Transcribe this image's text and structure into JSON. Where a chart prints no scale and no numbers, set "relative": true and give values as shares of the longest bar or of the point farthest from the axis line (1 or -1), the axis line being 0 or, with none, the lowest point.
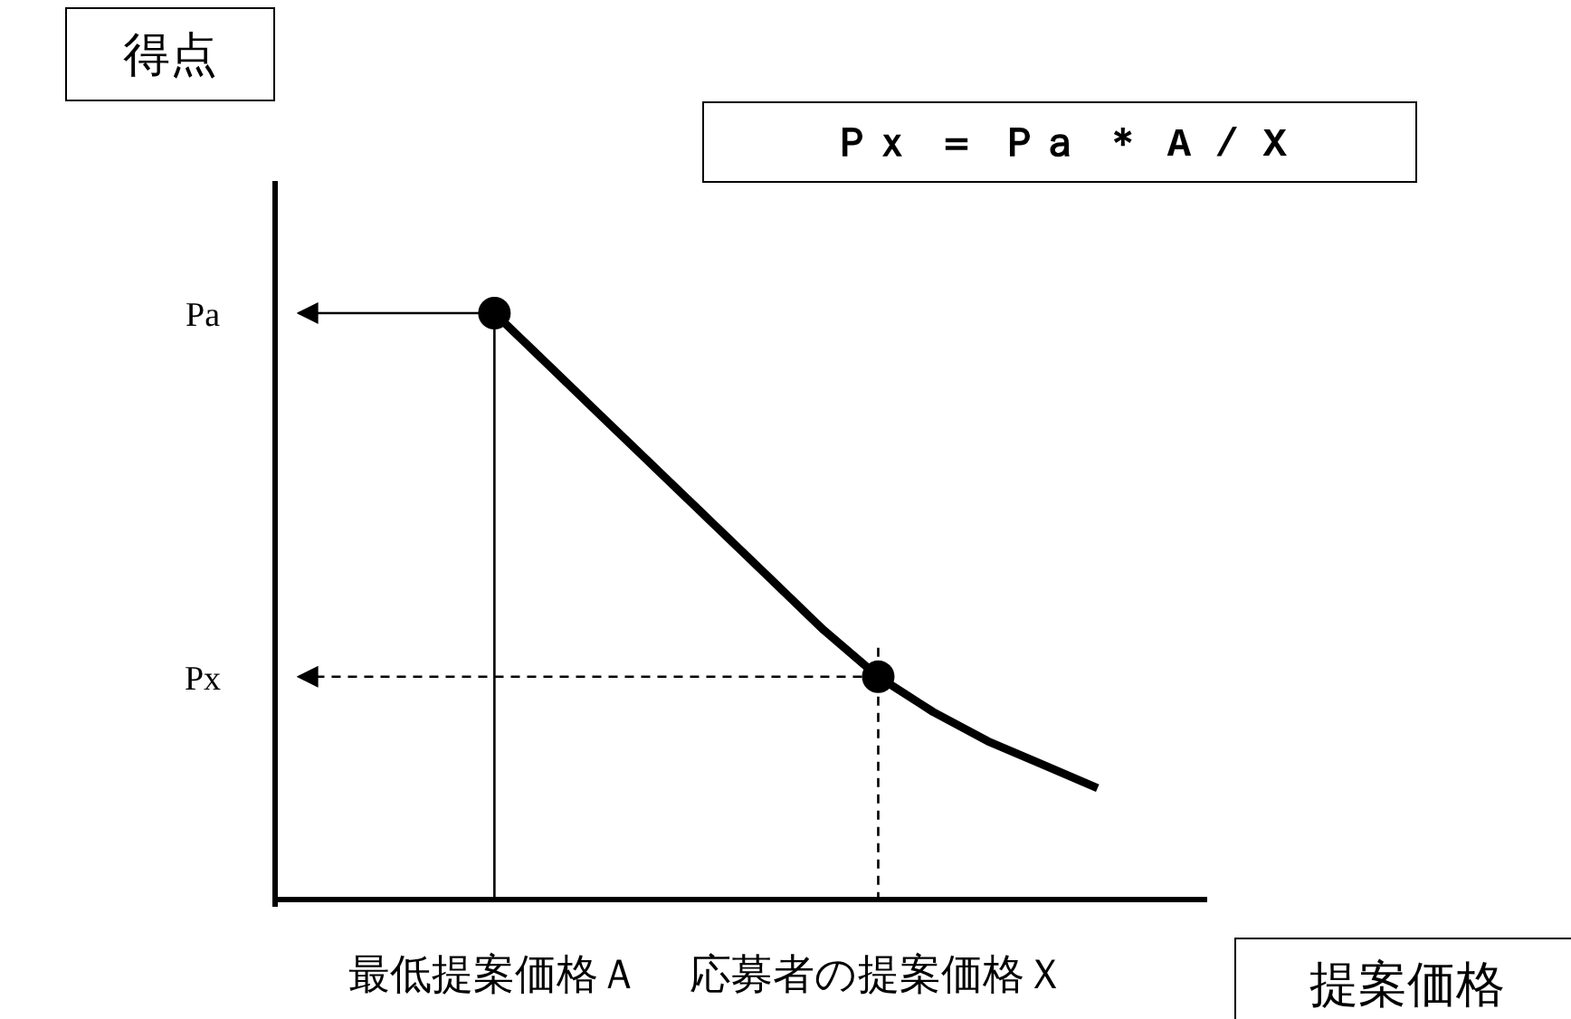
{
  "chart_data": {
    "type": "line",
    "relative": true,
    "title": "Ｐｘ ＝ Ｐａ ＊ A / X",
    "xlabel": "提案価格",
    "annotations": [
      "得点"
    ],
    "categories": [
      null,
      null,
      null,
      null,
      "最低提案価格Ａ",
      null,
      null,
      null,
      null,
      null,
      null,
      "応募者の提案価格Ｘ",
      null,
      null,
      null,
      null,
      null,
      null
    ],
    "series": [
      {
        "type": "line",
        "color": "#000000",
        "marker": "none",
        "values": [
          null,
          null,
          null,
          null,
          1,
          0.91,
          0.82,
          0.73,
          0.64,
          0.55,
          0.46,
          0.38,
          0.32,
          0.27,
          0.23,
          0.19,
          null,
          null
        ]
      },
      {
        "type": "scatter",
        "color": "#000000",
        "marker": "circle",
        "values": [
          null,
          null,
          null,
          null,
          1,
          null,
          null,
          null,
          null,
          null,
          null,
          0.38,
          null,
          null,
          null,
          null,
          null,
          null
        ]
      }
    ],
    "ref_lines": [
      {
        "axis": "y",
        "value": 1,
        "label": "Pa",
        "line_style": "solid"
      },
      {
        "axis": "y",
        "value": 0.38,
        "label": "Px",
        "line_style": "dashed"
      },
      {
        "axis": "x",
        "value": "最低提案価格Ａ",
        "line_style": "solid"
      },
      {
        "axis": "x",
        "value": "応募者の提案価格Ｘ",
        "line_style": "dashed"
      }
    ],
    "grid": false
  }
}
